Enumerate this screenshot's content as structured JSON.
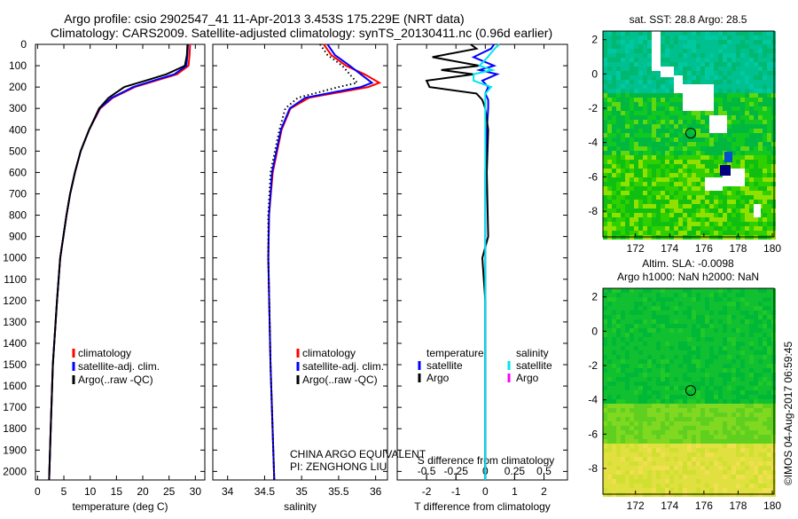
{
  "title_line1": "Argo profile: csio 2902547_41 11-Apr-2013 3.453S 175.229E (NRT data)",
  "title_line2": "Climatology: CARS2009. Satellite-adjusted climatology: synTS_20130411.nc (0.96d earlier)",
  "credit": "©IMOS 04-Aug-2017 06:59:45",
  "pi_line1": "CHINA ARGO EQUIVALENT",
  "pi_line2": "PI: ZENGHONG LIU",
  "colors": {
    "climatology": "#ff0000",
    "satellite": "#0000ff",
    "argo": "#000000",
    "sal_satellite": "#00e5ee",
    "sal_argo": "#ff00ff"
  },
  "chart_data": [
    {
      "type": "line",
      "name": "temperature-profile",
      "xlabel": "temperature (deg C)",
      "ylabel": "",
      "xlim": [
        -0.4,
        31.8
      ],
      "ylim": [
        2040,
        0
      ],
      "xticks": [
        0,
        5,
        10,
        15,
        20,
        25,
        30
      ],
      "yticks": [
        0,
        100,
        200,
        300,
        400,
        500,
        600,
        700,
        800,
        900,
        1000,
        1100,
        1200,
        1300,
        1400,
        1500,
        1600,
        1700,
        1800,
        1900,
        2000
      ],
      "legend": [
        "climatology",
        "satellite-adj. clim.",
        "Argo(..raw -QC)"
      ],
      "depth": [
        0,
        50,
        100,
        140,
        170,
        200,
        250,
        300,
        400,
        500,
        600,
        700,
        800,
        1000,
        1200,
        1500,
        1800,
        2040
      ],
      "series": [
        {
          "name": "climatology",
          "values": [
            29.0,
            28.9,
            28.7,
            26.5,
            22.5,
            18.5,
            14.3,
            11.9,
            9.8,
            8.2,
            7.1,
            6.2,
            5.5,
            4.3,
            3.7,
            2.9,
            2.5,
            2.2
          ]
        },
        {
          "name": "satellite-adj. clim.",
          "values": [
            28.6,
            28.5,
            28.3,
            26.0,
            22.0,
            18.2,
            14.1,
            11.8,
            9.8,
            8.2,
            7.1,
            6.2,
            5.5,
            4.3,
            3.7,
            2.9,
            2.5,
            2.2
          ]
        },
        {
          "name": "Argo(..raw -QC)",
          "values": [
            28.5,
            28.4,
            28.0,
            24.5,
            20.5,
            16.5,
            13.5,
            11.7,
            9.8,
            8.2,
            7.1,
            6.2,
            5.5,
            4.3,
            3.7,
            2.9,
            2.5,
            2.2
          ]
        }
      ]
    },
    {
      "type": "line",
      "name": "salinity-profile",
      "xlabel": "salinity",
      "xlim": [
        33.8,
        36.16
      ],
      "ylim": [
        2040,
        0
      ],
      "xticks": [
        34,
        34.5,
        35,
        35.5,
        36
      ],
      "legend": [
        "climatology",
        "satellite-adj. clim.",
        "Argo(..raw -QC)"
      ],
      "depth": [
        0,
        50,
        100,
        140,
        180,
        200,
        250,
        300,
        400,
        600,
        800,
        1000,
        1500,
        2040
      ],
      "series": [
        {
          "name": "climatology",
          "values": [
            35.3,
            35.4,
            35.6,
            35.85,
            36.05,
            35.9,
            35.1,
            34.85,
            34.73,
            34.61,
            34.56,
            34.55,
            34.58,
            34.63
          ]
        },
        {
          "name": "satellite-adj. clim.",
          "values": [
            35.35,
            35.45,
            35.65,
            35.8,
            35.95,
            35.8,
            35.05,
            34.84,
            34.72,
            34.6,
            34.56,
            34.55,
            34.58,
            34.63
          ]
        },
        {
          "name": "Argo(..raw -QC)",
          "values": [
            35.25,
            35.35,
            35.55,
            35.65,
            35.75,
            35.5,
            34.95,
            34.78,
            34.7,
            34.58,
            34.55,
            34.55,
            34.58,
            34.63
          ]
        }
      ]
    },
    {
      "type": "line",
      "name": "difference-profile",
      "xlabel": "T difference from climatology",
      "xlabel_top": "S difference from climatology",
      "xlim": [
        -3,
        2.8
      ],
      "ylim": [
        2040,
        0
      ],
      "xticks": [
        -2,
        -1,
        0,
        1,
        2
      ],
      "xticks_top": [
        -0.5,
        -0.25,
        0,
        0.25,
        0.5
      ],
      "legend_headers": [
        "temperature",
        "salinity"
      ],
      "legend": [
        "satellite",
        "Argo",
        "satellite",
        "Argo"
      ],
      "depth": [
        0,
        20,
        60,
        100,
        120,
        140,
        170,
        200,
        230,
        260,
        300,
        400,
        600,
        900,
        1000,
        1200,
        1500,
        2040
      ],
      "series": [
        {
          "name": "temperature satellite",
          "values": [
            0.3,
            0.2,
            -0.4,
            0.3,
            -0.2,
            0.4,
            -0.1,
            0.1,
            0.0,
            0.1,
            0.1,
            0.05,
            0.0,
            0.0,
            0.0,
            0.0,
            0.0,
            0.0
          ]
        },
        {
          "name": "temperature Argo",
          "values": [
            -0.5,
            -0.3,
            -1.8,
            -0.2,
            -1.5,
            -0.4,
            -2.0,
            -1.9,
            -0.3,
            -0.1,
            0.0,
            0.1,
            0.05,
            0.1,
            -0.1,
            0.0,
            0.0,
            0.0
          ]
        },
        {
          "name": "salinity satellite",
          "values": [
            0.12,
            0.08,
            0.02,
            -0.05,
            0.06,
            -0.1,
            -0.1,
            0.05,
            0.0,
            0.0,
            0.0,
            0.0,
            0.0,
            0.0,
            0.0,
            0.0,
            0.0,
            0.0
          ]
        }
      ]
    },
    {
      "type": "heatmap",
      "name": "sst-map",
      "title": "sat. SST: 28.8 Argo: 28.5",
      "xlim": [
        170.1,
        180.1
      ],
      "ylim": [
        -9.5,
        2.5
      ],
      "xticks": [
        172,
        174,
        176,
        178,
        180
      ],
      "yticks": [
        2,
        0,
        -2,
        -4,
        -6,
        -8
      ],
      "marker": {
        "lon": 175.229,
        "lat": -3.453
      }
    },
    {
      "type": "heatmap",
      "name": "sla-map",
      "title": "Altim. SLA: -0.0098",
      "subtitle": "Argo h1000: NaN h2000: NaN",
      "xlim": [
        170.1,
        180.1
      ],
      "ylim": [
        -9.5,
        2.5
      ],
      "xticks": [
        172,
        174,
        176,
        178,
        180
      ],
      "yticks": [
        2,
        0,
        -2,
        -4,
        -6,
        -8
      ],
      "marker": {
        "lon": 175.229,
        "lat": -3.453
      }
    }
  ]
}
